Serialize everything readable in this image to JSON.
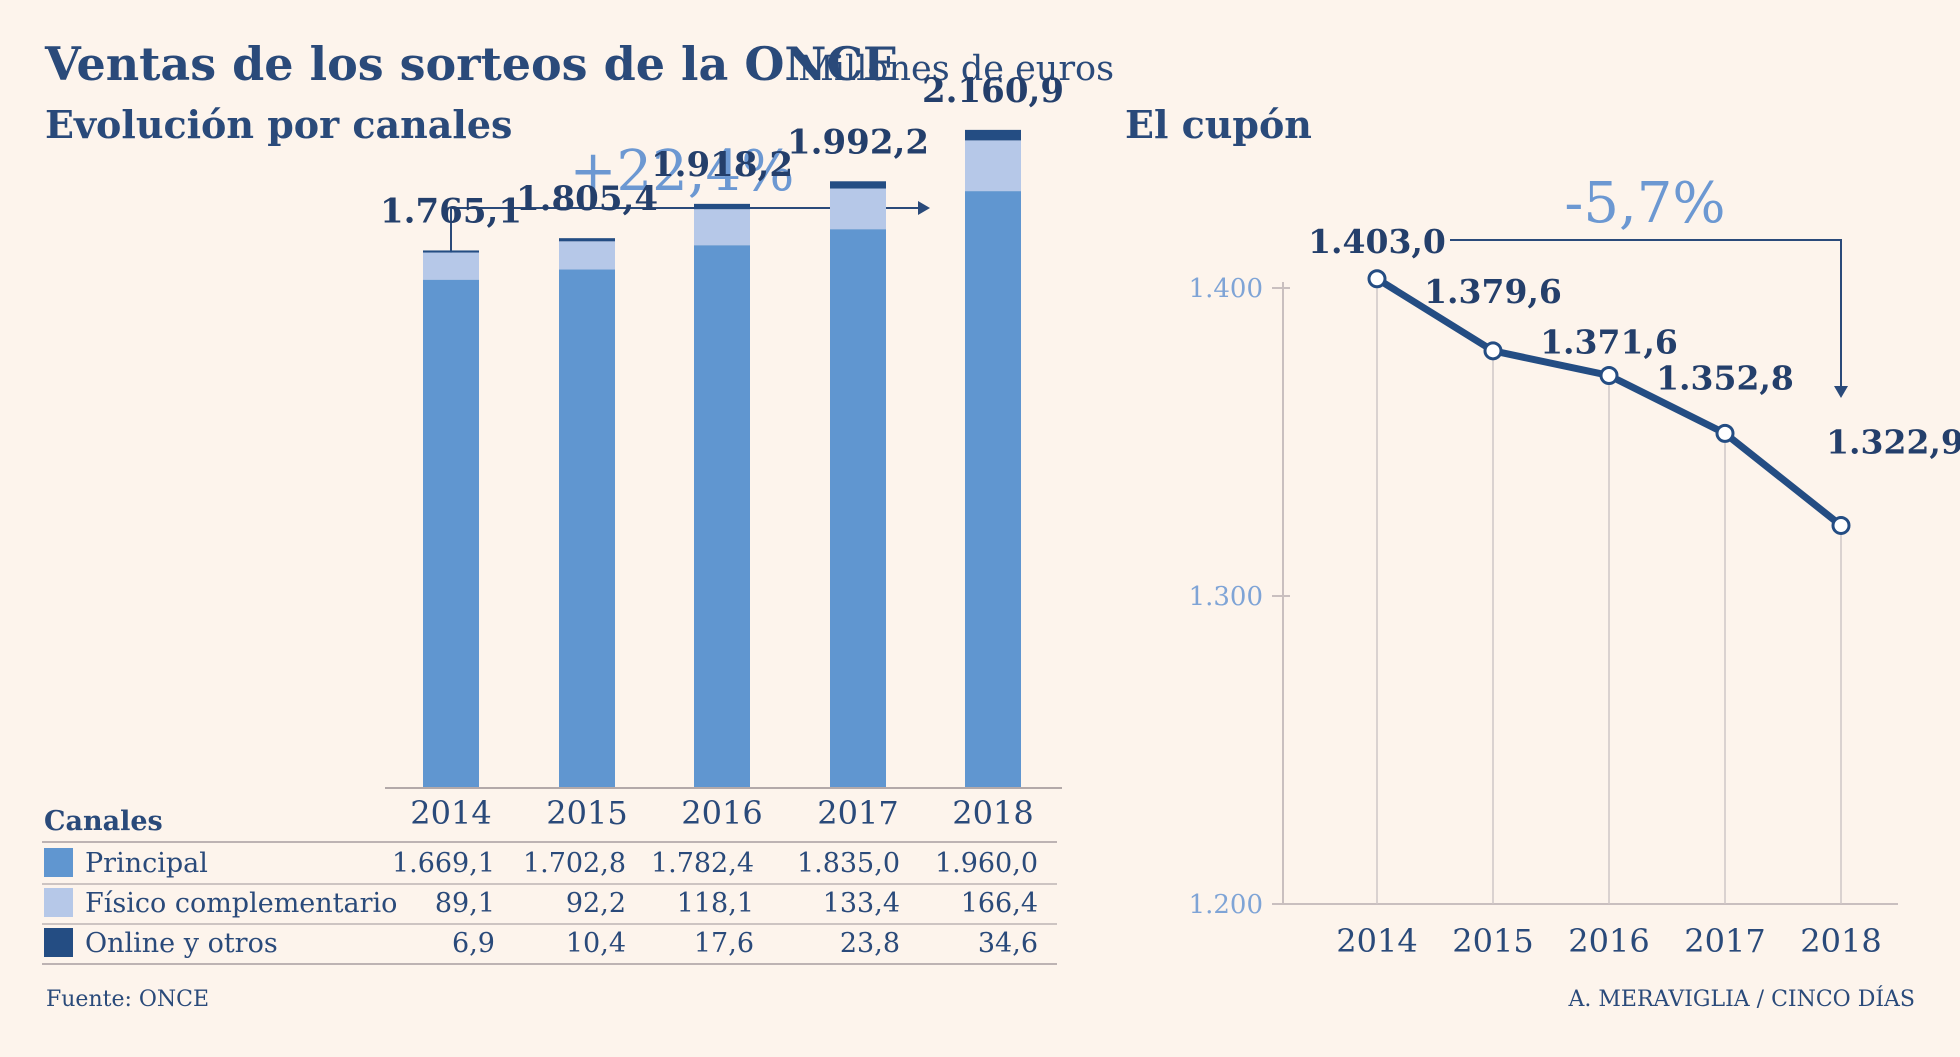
{
  "header": {
    "title": "Ventas de los sorteos de la ONCE",
    "unit": "Millones de euros"
  },
  "colors": {
    "principal": "#6096d0",
    "fisico": "#b6c8e8",
    "online": "#244d83",
    "line": "#244d83",
    "axis_label": "#7fa4d6",
    "background": "#fdf4ec"
  },
  "chart_data": [
    {
      "type": "bar",
      "stacked": true,
      "title": "Evolución por canales",
      "categories": [
        "2014",
        "2015",
        "2016",
        "2017",
        "2018"
      ],
      "series": [
        {
          "name": "Principal",
          "values": [
            1669.1,
            1702.8,
            1782.4,
            1835.0,
            1960.0
          ],
          "labels": [
            "1.669,1",
            "1.702,8",
            "1.782,4",
            "1.835,0",
            "1.960,0"
          ]
        },
        {
          "name": "Físico complementario",
          "values": [
            89.1,
            92.2,
            118.1,
            133.4,
            166.4
          ],
          "labels": [
            "89,1",
            "92,2",
            "118,1",
            "133,4",
            "166,4"
          ]
        },
        {
          "name": "Online y otros",
          "values": [
            6.9,
            10.4,
            17.6,
            23.8,
            34.6
          ],
          "labels": [
            "6,9",
            "10,4",
            "17,6",
            "23,8",
            "34,6"
          ]
        }
      ],
      "totals": [
        1765.1,
        1805.4,
        1918.2,
        1992.2,
        2160.9
      ],
      "total_labels": [
        "1.765,1",
        "1.805,4",
        "1.918,2",
        "1.992,2",
        "2.160,9"
      ],
      "growth_label": "+22,4%",
      "ylim": [
        0,
        2200
      ],
      "table_header": "Canales",
      "grid": false
    },
    {
      "type": "line",
      "title": "El cupón",
      "x": [
        "2014",
        "2015",
        "2016",
        "2017",
        "2018"
      ],
      "values": [
        1403.0,
        1379.6,
        1371.6,
        1352.8,
        1322.9
      ],
      "labels": [
        "1.403,0",
        "1.379,6",
        "1.371,6",
        "1.352,8",
        "1.322,9"
      ],
      "growth_label": "-5,7%",
      "ylim": [
        1200,
        1410
      ],
      "yticks": [
        1200,
        1300,
        1400
      ],
      "ytick_labels": [
        "1.200",
        "1.300",
        "1.400"
      ],
      "grid": "vertical lines at each year"
    }
  ],
  "footer": {
    "source": "Fuente: ONCE",
    "credit": "A. MERAVIGLIA / CINCO DÍAS"
  }
}
